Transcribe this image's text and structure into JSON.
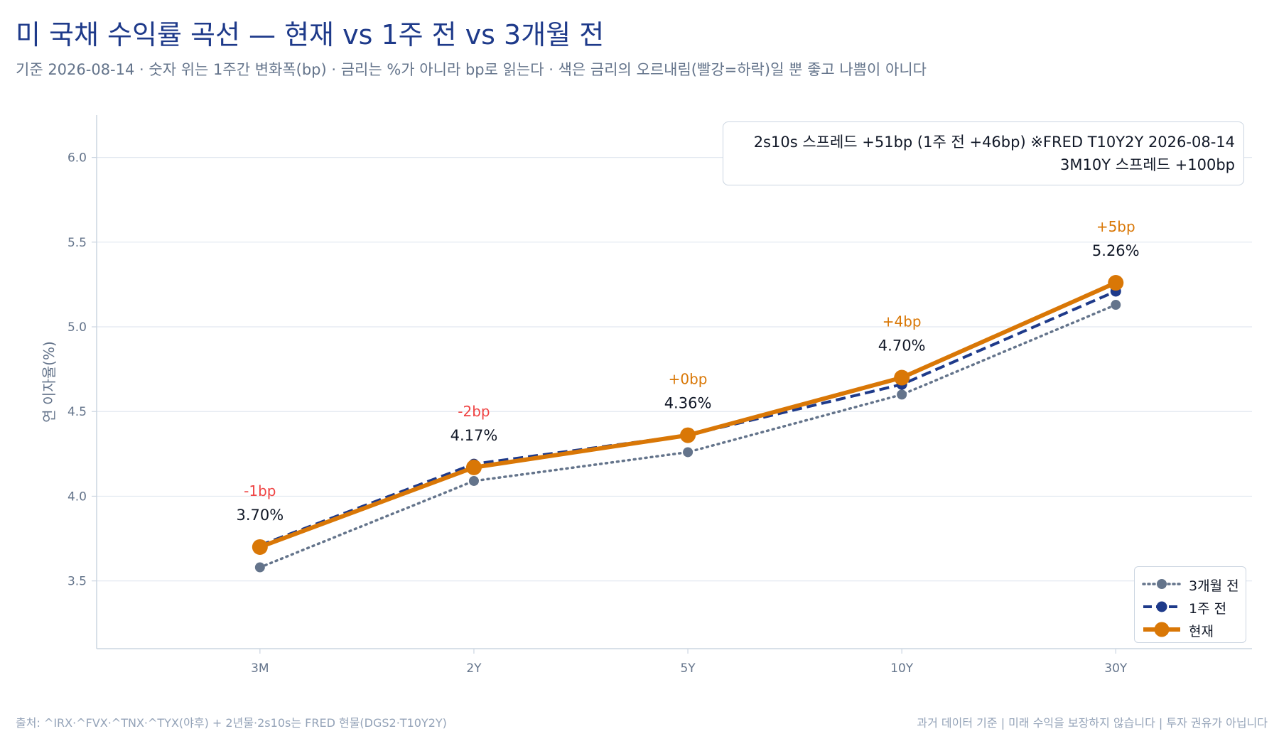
{
  "header": {
    "title": "미 국채 수익률 곡선 — 현재 vs 1주 전 vs 3개월 전",
    "subtitle": "기준 2026-08-14 · 숫자 위는 1주간 변화폭(bp) · 금리는 %가 아니라 bp로 읽는다 · 색은 금리의 오르내림(빨강=하락)일 뿐 좋고 나쁨이 아니다"
  },
  "annotation": {
    "line1": "2s10s 스프레드 +51bp (1주 전 +46bp)  ※FRED T10Y2Y 2026-08-14",
    "line2": "3M10Y 스프레드 +100bp"
  },
  "footer": {
    "source": "출처: ^IRX·^FVX·^TNX·^TYX(야후) + 2년물·2s10s는 FRED 현물(DGS2·T10Y2Y)",
    "disclaimer": "과거 데이터 기준 | 미래 수익을 보장하지 않습니다 | 투자 권유가 아닙니다"
  },
  "colors": {
    "current": "#d97706",
    "week_ago": "#1e3a8a",
    "three_months_ago": "#64748b",
    "down": "#ef4444",
    "up": "#d97706",
    "grid": "#e2e8f0",
    "axis": "#cbd5e1",
    "tick_text": "#64748b"
  },
  "chart_data": {
    "type": "line",
    "categories": [
      "3M",
      "2Y",
      "5Y",
      "10Y",
      "30Y"
    ],
    "ylabel": "연 이자율(%)",
    "ylim": [
      3.1,
      6.25
    ],
    "yticks": [
      "3.5",
      "4.0",
      "4.5",
      "5.0",
      "5.5",
      "6.0"
    ],
    "grid": true,
    "legend_position": "bottom-right",
    "series": [
      {
        "name": "3개월 전",
        "style": "dotted",
        "values": [
          3.58,
          4.09,
          4.26,
          4.6,
          5.13
        ]
      },
      {
        "name": "1주 전",
        "style": "dashed",
        "values": [
          3.71,
          4.19,
          4.36,
          4.66,
          5.21
        ]
      },
      {
        "name": "현재",
        "style": "solid",
        "values": [
          3.7,
          4.17,
          4.36,
          4.7,
          5.26
        ]
      }
    ],
    "value_labels": [
      "3.70%",
      "4.17%",
      "4.36%",
      "4.70%",
      "5.26%"
    ],
    "change_labels": [
      "-1bp",
      "-2bp",
      "+0bp",
      "+4bp",
      "+5bp"
    ]
  }
}
